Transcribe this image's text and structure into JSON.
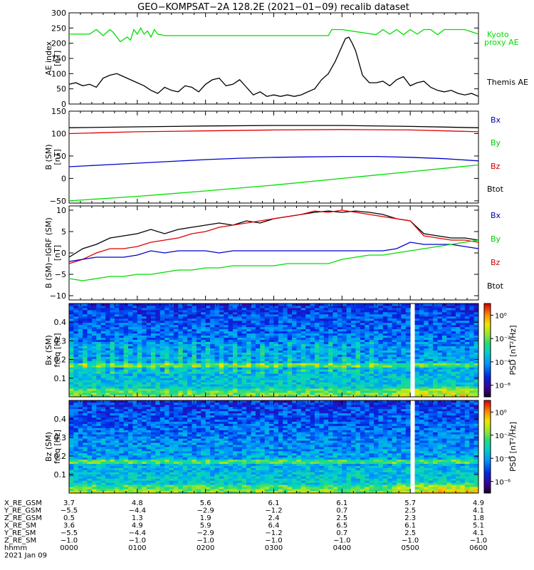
{
  "title": "GEO−KOMPSAT−2A 128.2E (2021−01−09) recalib dataset",
  "colors": {
    "black": "#000000",
    "green": "#00dd00",
    "blue": "#0000cc",
    "red": "#dd0000",
    "legend_green": "#00cc00",
    "legend_blue": "#0000aa",
    "legend_red": "#cc0000"
  },
  "chart_data": [
    {
      "type": "line",
      "ylabel": "AE index",
      "yunit": "[nT]",
      "ylim": [
        0,
        300
      ],
      "yticks": [
        "0",
        "50",
        "100",
        "150",
        "200",
        "250",
        "300"
      ],
      "xlim": [
        0,
        6
      ],
      "legend_placement": "right",
      "series": [
        {
          "name": "Kyoto\nproxy AE",
          "legend_lines": [
            "Kyoto",
            "proxy AE"
          ],
          "color": "#00dd00",
          "x": [
            0,
            0.1,
            0.3,
            0.4,
            0.5,
            0.6,
            0.65,
            0.75,
            0.85,
            0.9,
            0.95,
            1.0,
            1.05,
            1.1,
            1.15,
            1.2,
            1.25,
            1.3,
            1.4,
            2.0,
            3.0,
            3.8,
            3.85,
            4.0,
            4.5,
            4.6,
            4.7,
            4.8,
            4.9,
            5.0,
            5.1,
            5.2,
            5.3,
            5.4,
            5.5,
            5.6,
            5.8,
            6.0
          ],
          "y": [
            230,
            230,
            230,
            245,
            225,
            245,
            235,
            205,
            220,
            210,
            245,
            230,
            250,
            230,
            240,
            220,
            245,
            230,
            225,
            225,
            225,
            225,
            245,
            245,
            228,
            245,
            230,
            245,
            228,
            245,
            230,
            245,
            245,
            228,
            245,
            245,
            245,
            230
          ]
        },
        {
          "name": "Themis AE",
          "legend_lines": [
            "Themis AE"
          ],
          "color": "#000000",
          "x": [
            0,
            0.1,
            0.2,
            0.3,
            0.4,
            0.5,
            0.6,
            0.7,
            0.8,
            0.9,
            1.0,
            1.1,
            1.2,
            1.3,
            1.4,
            1.5,
            1.6,
            1.7,
            1.8,
            1.9,
            2.0,
            2.1,
            2.2,
            2.3,
            2.4,
            2.5,
            2.6,
            2.7,
            2.8,
            2.9,
            3.0,
            3.1,
            3.2,
            3.3,
            3.4,
            3.5,
            3.6,
            3.7,
            3.8,
            3.9,
            4.0,
            4.05,
            4.1,
            4.15,
            4.2,
            4.3,
            4.4,
            4.5,
            4.6,
            4.7,
            4.8,
            4.9,
            5.0,
            5.1,
            5.2,
            5.3,
            5.4,
            5.5,
            5.6,
            5.7,
            5.8,
            5.9,
            6.0
          ],
          "y": [
            65,
            70,
            60,
            65,
            55,
            85,
            95,
            100,
            90,
            80,
            70,
            60,
            45,
            35,
            55,
            45,
            40,
            60,
            55,
            40,
            65,
            80,
            85,
            60,
            65,
            80,
            55,
            30,
            40,
            25,
            30,
            25,
            30,
            25,
            30,
            40,
            50,
            80,
            100,
            140,
            190,
            215,
            220,
            200,
            175,
            95,
            70,
            70,
            75,
            60,
            80,
            90,
            60,
            70,
            75,
            55,
            45,
            40,
            45,
            35,
            30,
            35,
            25
          ]
        }
      ]
    },
    {
      "type": "line",
      "ylabel": "B (SM)",
      "yunit": "[nT]",
      "ylim": [
        -55,
        150
      ],
      "yticks": [
        "−50",
        "0",
        "50",
        "100",
        "150"
      ],
      "tick_values": [
        -50,
        0,
        50,
        100,
        150
      ],
      "xlim": [
        0,
        6
      ],
      "legend_placement": "right",
      "legend": [
        "Bx",
        "By",
        "Bz",
        "Btot"
      ],
      "series": [
        {
          "name": "Btot",
          "color": "#000000",
          "x": [
            0,
            1,
            2,
            3,
            4,
            5,
            6
          ],
          "y": [
            113,
            115,
            117,
            118,
            118,
            116,
            113
          ]
        },
        {
          "name": "Bz",
          "color": "#dd0000",
          "x": [
            0,
            1,
            2,
            3,
            4,
            5,
            6
          ],
          "y": [
            100,
            104,
            106,
            108,
            109,
            108,
            104
          ]
        },
        {
          "name": "Bx",
          "color": "#0000cc",
          "x": [
            0,
            0.5,
            1,
            1.5,
            2,
            2.5,
            3,
            3.5,
            4,
            4.5,
            5,
            5.5,
            6
          ],
          "y": [
            26,
            30,
            34,
            38,
            42,
            45,
            47,
            48,
            49,
            49,
            47,
            44,
            39
          ]
        },
        {
          "name": "By",
          "color": "#00dd00",
          "x": [
            0,
            1,
            2,
            3,
            4,
            5,
            6
          ],
          "y": [
            -50,
            -40,
            -28,
            -15,
            0,
            15,
            30
          ]
        }
      ]
    },
    {
      "type": "line",
      "ylabel": "B (SM)−IGRF (SM)",
      "yunit": "[nT]",
      "ylim": [
        -11,
        11
      ],
      "yticks": [
        "−10",
        "−5",
        "0",
        "5",
        "10"
      ],
      "tick_values": [
        -10,
        -5,
        0,
        5,
        10
      ],
      "xlim": [
        0,
        6
      ],
      "legend_placement": "right",
      "legend": [
        "Bx",
        "By",
        "Bz",
        "Btot"
      ],
      "series": [
        {
          "name": "Btot",
          "color": "#000000",
          "x": [
            0,
            0.2,
            0.4,
            0.6,
            0.8,
            1.0,
            1.2,
            1.4,
            1.6,
            1.8,
            2.0,
            2.2,
            2.4,
            2.6,
            2.8,
            3.0,
            3.2,
            3.4,
            3.6,
            3.8,
            4.0,
            4.2,
            4.4,
            4.6,
            4.8,
            5.0,
            5.2,
            5.4,
            5.6,
            5.8,
            6.0
          ],
          "y": [
            -1,
            1,
            2,
            3.5,
            4,
            4.5,
            5.5,
            4.5,
            5.5,
            6,
            6.5,
            7,
            6.5,
            7.5,
            7,
            8,
            8.5,
            9,
            9.5,
            9.8,
            9.5,
            9.8,
            9.5,
            9,
            8,
            7.5,
            4.5,
            4,
            3.5,
            3.5,
            3
          ]
        },
        {
          "name": "Bz",
          "color": "#dd0000",
          "x": [
            0,
            0.2,
            0.4,
            0.6,
            0.8,
            1.0,
            1.2,
            1.4,
            1.6,
            1.8,
            2.0,
            2.2,
            2.4,
            2.6,
            2.8,
            3.0,
            3.2,
            3.4,
            3.6,
            3.8,
            4.0,
            4.2,
            4.4,
            4.6,
            4.8,
            5.0,
            5.2,
            5.4,
            5.6,
            5.8,
            6.0
          ],
          "y": [
            -2.5,
            -1.5,
            0,
            1,
            1,
            1.5,
            2.5,
            3,
            3.5,
            4.5,
            5,
            6,
            6.5,
            7,
            7.5,
            8,
            8.5,
            9,
            9.8,
            9.5,
            10,
            9.5,
            9,
            8.5,
            8,
            7.5,
            4,
            3.5,
            3,
            3,
            2.5
          ]
        },
        {
          "name": "Bx",
          "color": "#0000cc",
          "x": [
            0,
            0.2,
            0.4,
            0.6,
            0.8,
            1.0,
            1.2,
            1.4,
            1.6,
            1.8,
            2.0,
            2.2,
            2.4,
            2.6,
            2.8,
            3.0,
            3.2,
            3.4,
            3.6,
            3.8,
            4.0,
            4.2,
            4.4,
            4.6,
            4.8,
            5.0,
            5.2,
            5.4,
            5.6,
            5.8,
            6.0
          ],
          "y": [
            -2,
            -1.5,
            -1,
            -1,
            -1,
            -0.5,
            0.5,
            0,
            0.5,
            0.5,
            0.5,
            0,
            0.5,
            0.5,
            0.5,
            0.5,
            0.5,
            0.5,
            0.5,
            0.5,
            0.5,
            0.5,
            0.5,
            0.5,
            1,
            2.5,
            2,
            2,
            2,
            1.5,
            1
          ]
        },
        {
          "name": "By",
          "color": "#00dd00",
          "x": [
            0,
            0.2,
            0.4,
            0.6,
            0.8,
            1.0,
            1.2,
            1.4,
            1.6,
            1.8,
            2.0,
            2.2,
            2.4,
            2.6,
            2.8,
            3.0,
            3.2,
            3.4,
            3.6,
            3.8,
            4.0,
            4.2,
            4.4,
            4.6,
            4.8,
            5.0,
            5.2,
            5.4,
            5.6,
            5.8,
            6.0
          ],
          "y": [
            -6,
            -6.5,
            -6,
            -5.5,
            -5.5,
            -5,
            -5,
            -4.5,
            -4,
            -4,
            -3.5,
            -3.5,
            -3,
            -3,
            -3,
            -3,
            -2.5,
            -2.5,
            -2.5,
            -2.5,
            -1.5,
            -1,
            -0.5,
            -0.5,
            0,
            0.5,
            1,
            1.5,
            2,
            2.5,
            3
          ]
        }
      ]
    },
    {
      "type": "heatmap",
      "ylabel": "Bx (SM)",
      "yunit": "freq [Hz]",
      "ylim": [
        0,
        0.5
      ],
      "yticks": [
        "0.1",
        "0.2",
        "0.3",
        "0.4"
      ],
      "tick_values": [
        0.1,
        0.2,
        0.3,
        0.4
      ],
      "xlim": [
        0,
        6
      ],
      "data_gap_hours": [
        5.0,
        5.04
      ],
      "colorbar_label": "PSD [nT²/Hz]",
      "colorbar_ticks": [
        "10⁰",
        "10⁻²",
        "10⁻⁴",
        "10⁻⁶"
      ],
      "colorbar_log_range": [
        -7,
        1
      ],
      "colorbar_tick_values": [
        0,
        -2,
        -4,
        -6
      ]
    },
    {
      "type": "heatmap",
      "ylabel": "Bz (SM)",
      "yunit": "freq [Hz]",
      "ylim": [
        0,
        0.5
      ],
      "yticks": [
        "0.1",
        "0.2",
        "0.3",
        "0.4"
      ],
      "tick_values": [
        0.1,
        0.2,
        0.3,
        0.4
      ],
      "xlim": [
        0,
        6
      ],
      "data_gap_hours": [
        5.0,
        5.04
      ],
      "colorbar_label": "PSD [nT²/Hz]",
      "colorbar_ticks": [
        "10⁰",
        "10⁻²",
        "10⁻⁴",
        "10⁻⁶"
      ],
      "colorbar_log_range": [
        -7,
        1
      ],
      "colorbar_tick_values": [
        0,
        -2,
        -4,
        -6
      ]
    }
  ],
  "ephemeris": {
    "row_labels": [
      "X_RE_GSM",
      "Y_RE_GSM",
      "Z_RE_GSM",
      "X_RE_SM",
      "Y_RE_SM",
      "Z_RE_SM",
      "hhmm"
    ],
    "columns": [
      [
        "3.7",
        "−5.5",
        "0.5",
        "3.6",
        "−5.5",
        "−1.0",
        "0000"
      ],
      [
        "4.8",
        "−4.4",
        "1.3",
        "4.9",
        "−4.4",
        "−1.0",
        "0100"
      ],
      [
        "5.6",
        "−2.9",
        "1.9",
        "5.9",
        "−2.9",
        "−1.0",
        "0200"
      ],
      [
        "6.1",
        "−1.2",
        "2.4",
        "6.4",
        "−1.2",
        "−1.0",
        "0300"
      ],
      [
        "6.1",
        "0.7",
        "2.5",
        "6.5",
        "0.7",
        "−1.0",
        "0400"
      ],
      [
        "5.7",
        "2.5",
        "2.3",
        "6.1",
        "2.5",
        "−1.0",
        "0500"
      ],
      [
        "4.9",
        "4.1",
        "1.8",
        "5.1",
        "4.1",
        "−1.0",
        "0600"
      ]
    ],
    "date": "2021 Jan 09"
  }
}
